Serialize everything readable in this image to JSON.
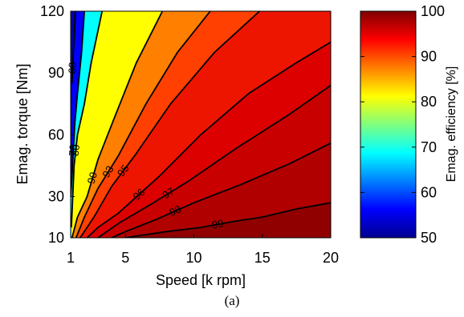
{
  "caption": "(a)",
  "chart_data": {
    "type": "contour",
    "xlabel": "Speed [k rpm]",
    "ylabel": "Emag. torque [Nm]",
    "colorbar_label": "Emag. efficiency [%]",
    "xlim": [
      1,
      20
    ],
    "ylim": [
      10,
      120
    ],
    "xticks": [
      1,
      5,
      10,
      15,
      20
    ],
    "yticks": [
      10,
      30,
      60,
      90,
      120
    ],
    "colorbar_range": [
      50,
      100
    ],
    "colorbar_ticks": [
      50,
      60,
      70,
      80,
      90,
      100
    ],
    "contour_levels": [
      {
        "level": 60,
        "label": "60",
        "color": "#0000ff",
        "points": [
          [
            1.35,
            120
          ],
          [
            1.3,
            112
          ],
          [
            1.2,
            100
          ],
          [
            1.1,
            85
          ]
        ]
      },
      {
        "level": 70,
        "label": "70",
        "color": "#00ffff",
        "points": [
          [
            2.0,
            120
          ],
          [
            1.8,
            100
          ],
          [
            1.5,
            80
          ],
          [
            1.3,
            65
          ],
          [
            1.1,
            40
          ],
          [
            1.0,
            30
          ]
        ]
      },
      {
        "level": 80,
        "label": "80",
        "color": "#ffff00",
        "points": [
          [
            3.3,
            120
          ],
          [
            2.5,
            95
          ],
          [
            2.0,
            75
          ],
          [
            1.5,
            60
          ],
          [
            1.25,
            45
          ],
          [
            1.05,
            15
          ]
        ]
      },
      {
        "level": 90,
        "label": "90",
        "color": "#ff7f00",
        "points": [
          [
            7.7,
            120
          ],
          [
            5.8,
            95
          ],
          [
            4.3,
            70
          ],
          [
            3.0,
            48
          ],
          [
            2.2,
            30
          ],
          [
            1.5,
            20
          ],
          [
            1.1,
            10
          ]
        ]
      },
      {
        "level": 93,
        "label": "93",
        "color": "#ff4000",
        "points": [
          [
            11.2,
            120
          ],
          [
            8.8,
            100
          ],
          [
            6.5,
            75
          ],
          [
            4.5,
            50
          ],
          [
            3.0,
            34
          ],
          [
            2.0,
            20
          ],
          [
            1.4,
            10
          ]
        ]
      },
      {
        "level": 95,
        "label": "95",
        "color": "#ee1500",
        "points": [
          [
            14.8,
            120
          ],
          [
            11.5,
            100
          ],
          [
            8.3,
            75
          ],
          [
            5.7,
            50
          ],
          [
            4.0,
            35
          ],
          [
            2.7,
            20
          ],
          [
            1.7,
            10
          ]
        ]
      },
      {
        "level": 96,
        "label": "96",
        "color": "#dd0000",
        "points": [
          [
            20.0,
            105
          ],
          [
            17.5,
            95
          ],
          [
            14.0,
            80
          ],
          [
            10.5,
            60
          ],
          [
            7.5,
            40
          ],
          [
            4.5,
            22
          ],
          [
            3.0,
            15
          ],
          [
            2.2,
            10
          ]
        ]
      },
      {
        "level": 97,
        "label": "97",
        "color": "#c80000",
        "points": [
          [
            20.0,
            84
          ],
          [
            17.0,
            70
          ],
          [
            13.0,
            53
          ],
          [
            9.5,
            37
          ],
          [
            6.8,
            26
          ],
          [
            4.5,
            17
          ],
          [
            3.0,
            10
          ]
        ]
      },
      {
        "level": 98,
        "label": "98",
        "color": "#b00000",
        "points": [
          [
            20.0,
            56
          ],
          [
            17.0,
            46
          ],
          [
            13.5,
            36
          ],
          [
            10.0,
            27
          ],
          [
            7.3,
            19
          ],
          [
            5.0,
            13
          ],
          [
            4.0,
            10
          ]
        ]
      },
      {
        "level": 99,
        "label": "99",
        "color": "#900000",
        "points": [
          [
            20.0,
            27
          ],
          [
            17.5,
            24
          ],
          [
            15.0,
            20
          ],
          [
            13.0,
            18
          ],
          [
            10.5,
            15
          ],
          [
            8.0,
            13
          ],
          [
            5.0,
            10
          ]
        ]
      }
    ]
  }
}
